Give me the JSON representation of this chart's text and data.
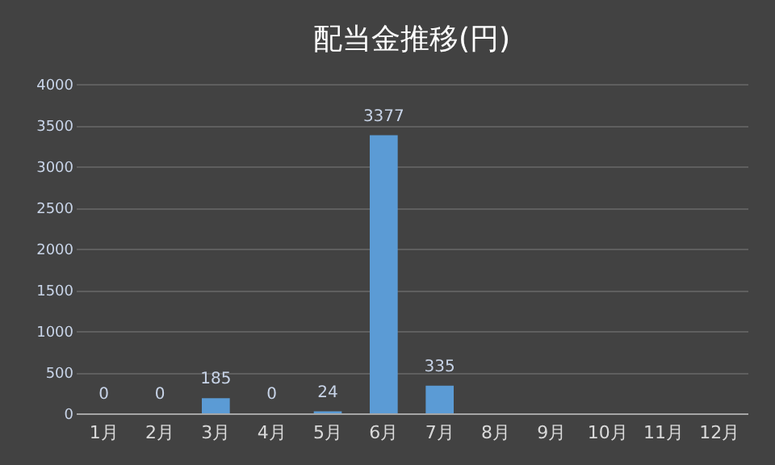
{
  "chart_data": {
    "type": "bar",
    "title": "配当金推移(円)",
    "categories": [
      "1月",
      "2月",
      "3月",
      "4月",
      "5月",
      "6月",
      "7月",
      "8月",
      "9月",
      "10月",
      "11月",
      "12月"
    ],
    "values": [
      0,
      0,
      185,
      0,
      24,
      3377,
      335,
      null,
      null,
      null,
      null,
      null
    ],
    "color": "#5b9bd5",
    "ylim": [
      0,
      4000
    ],
    "yticks": [
      0,
      500,
      1000,
      1500,
      2000,
      2500,
      3000,
      3500,
      4000
    ],
    "grid": "y",
    "data_labels": true
  }
}
